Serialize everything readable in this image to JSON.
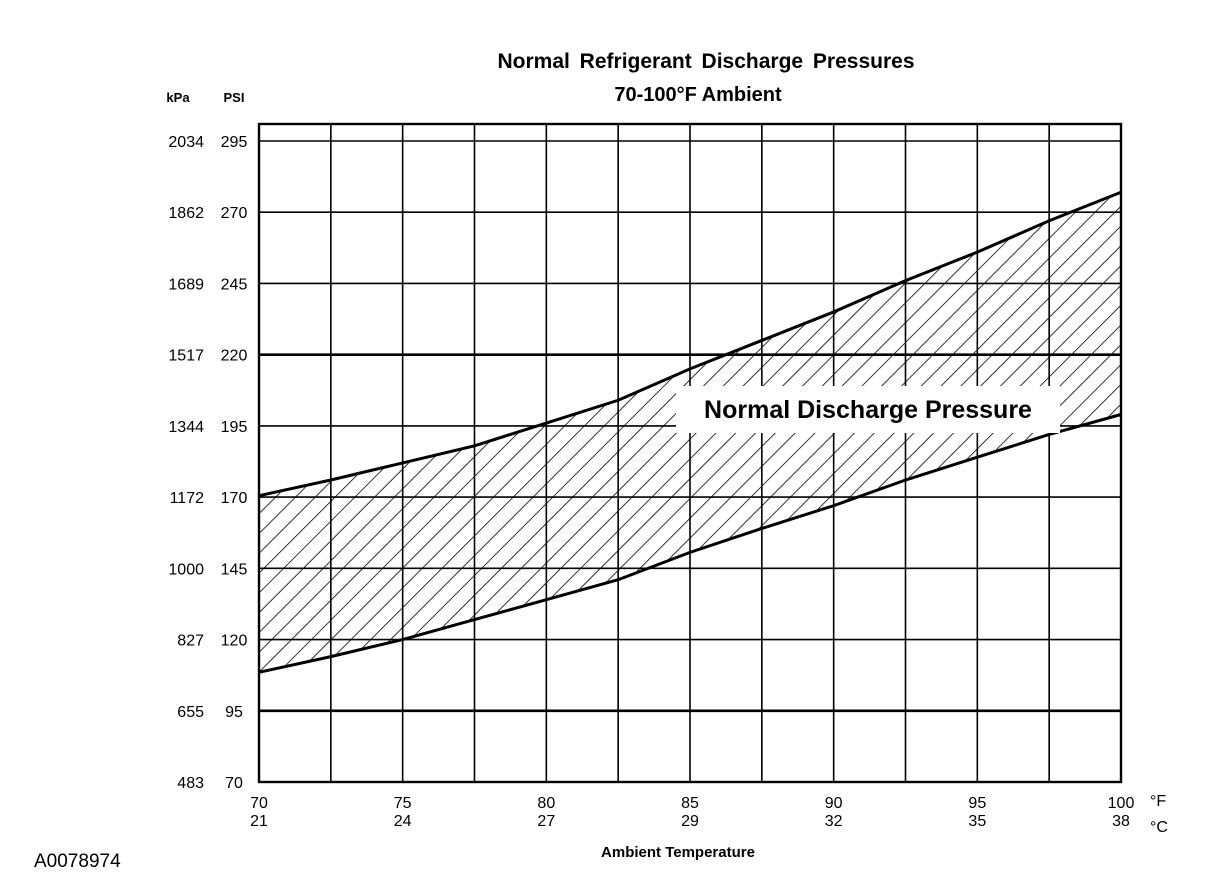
{
  "chart_data": {
    "type": "area",
    "title": "Normal Refrigerant Discharge Pressures",
    "subtitle": "70-100°F Ambient",
    "xlabel": "Ambient Temperature",
    "x_unit_primary": "°F",
    "x_unit_secondary": "°C",
    "y_unit_left": "kPa",
    "y_unit_right": "PSI",
    "xlim": [
      70,
      100
    ],
    "ylim": [
      70,
      295
    ],
    "x_ticks": [
      {
        "f": "70",
        "c": "21",
        "value": 70
      },
      {
        "f": "75",
        "c": "24",
        "value": 75
      },
      {
        "f": "80",
        "c": "27",
        "value": 80
      },
      {
        "f": "85",
        "c": "29",
        "value": 85
      },
      {
        "f": "90",
        "c": "32",
        "value": 90
      },
      {
        "f": "95",
        "c": "35",
        "value": 95
      },
      {
        "f": "100",
        "c": "38",
        "value": 100
      }
    ],
    "y_ticks": [
      {
        "psi": "70",
        "kpa": "483",
        "value": 70
      },
      {
        "psi": "95",
        "kpa": "655",
        "value": 95
      },
      {
        "psi": "120",
        "kpa": "827",
        "value": 120
      },
      {
        "psi": "145",
        "kpa": "1000",
        "value": 145
      },
      {
        "psi": "170",
        "kpa": "1172",
        "value": 170
      },
      {
        "psi": "195",
        "kpa": "1344",
        "value": 195
      },
      {
        "psi": "220",
        "kpa": "1517",
        "value": 220
      },
      {
        "psi": "245",
        "kpa": "1689",
        "value": 245
      },
      {
        "psi": "270",
        "kpa": "1862",
        "value": 270
      },
      {
        "psi": "295",
        "kpa": "2034",
        "value": 295
      }
    ],
    "grid": true,
    "band_label": "Normal Discharge Pressure",
    "series": [
      {
        "name": "upper",
        "x": [
          70,
          72.5,
          75,
          77.5,
          80,
          82.5,
          85,
          87.5,
          90,
          92.5,
          95,
          97.5,
          100
        ],
        "values": [
          170.5,
          176,
          182,
          188,
          196,
          204,
          215,
          225,
          235,
          246,
          256,
          267,
          277
        ]
      },
      {
        "name": "lower",
        "x": [
          70,
          72.5,
          75,
          77.5,
          80,
          82.5,
          85,
          87.5,
          90,
          92.5,
          95,
          97.5,
          100
        ],
        "values": [
          108.5,
          114,
          120,
          127,
          134,
          141,
          150.6,
          159,
          167,
          176,
          184,
          192,
          199
        ]
      }
    ],
    "figure_id": "A0078974"
  }
}
